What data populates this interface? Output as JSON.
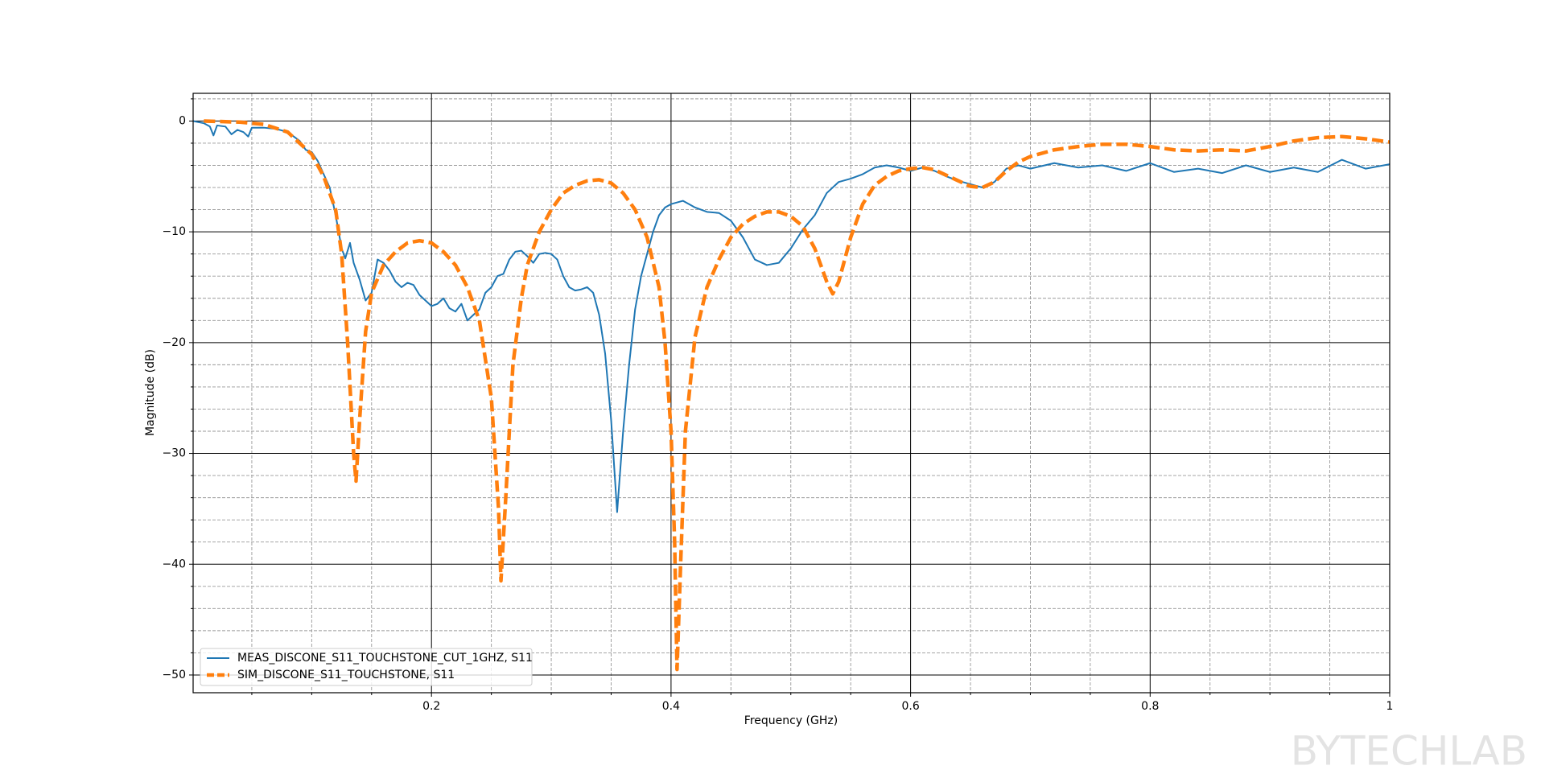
{
  "chart_data": {
    "type": "line",
    "x_label": "Frequency (GHz)",
    "y_label": "Magnitude (dB)",
    "xlim": [
      0.001,
      1
    ],
    "ylim": [
      -51.6,
      2.5
    ],
    "xticks": [
      0.2,
      0.4,
      0.6,
      0.8,
      1
    ],
    "yticks": [
      {
        "value": 0,
        "label": "0"
      },
      {
        "value": -10,
        "label": "−10"
      },
      {
        "value": -20,
        "label": "−20"
      },
      {
        "value": -30,
        "label": "−30"
      },
      {
        "value": -40,
        "label": "−40"
      },
      {
        "value": -50,
        "label": "−50"
      }
    ],
    "xminorticks": [
      0.05,
      0.1,
      0.15,
      0.25,
      0.3,
      0.35,
      0.45,
      0.5,
      0.55,
      0.65,
      0.7,
      0.75,
      0.85,
      0.9,
      0.95
    ],
    "yminorticks": [
      2,
      -2,
      -4,
      -6,
      -8,
      -12,
      -14,
      -16,
      -18,
      -22,
      -24,
      -26,
      -28,
      -32,
      -34,
      -36,
      -38,
      -42,
      -44,
      -46,
      -48
    ],
    "grid": true,
    "legend": "lower left",
    "watermark": "BYTECHLAB",
    "series": [
      {
        "name": "MEAS_DISCONE_S11_TOUCHSTONE_CUT_1GHZ, S11",
        "color": "#1f77b4",
        "dash": "solid",
        "x": [
          0.001,
          0.01,
          0.015,
          0.018,
          0.021,
          0.028,
          0.033,
          0.038,
          0.043,
          0.047,
          0.05,
          0.06,
          0.07,
          0.08,
          0.09,
          0.095,
          0.1,
          0.105,
          0.11,
          0.115,
          0.12,
          0.125,
          0.128,
          0.132,
          0.135,
          0.14,
          0.145,
          0.15,
          0.155,
          0.16,
          0.165,
          0.17,
          0.175,
          0.18,
          0.185,
          0.19,
          0.195,
          0.2,
          0.205,
          0.21,
          0.215,
          0.22,
          0.225,
          0.23,
          0.235,
          0.24,
          0.245,
          0.25,
          0.255,
          0.26,
          0.265,
          0.27,
          0.275,
          0.28,
          0.285,
          0.29,
          0.295,
          0.3,
          0.305,
          0.31,
          0.315,
          0.32,
          0.325,
          0.33,
          0.335,
          0.34,
          0.345,
          0.35,
          0.355,
          0.36,
          0.365,
          0.37,
          0.375,
          0.38,
          0.385,
          0.39,
          0.395,
          0.4,
          0.41,
          0.42,
          0.43,
          0.44,
          0.45,
          0.46,
          0.47,
          0.48,
          0.49,
          0.5,
          0.51,
          0.52,
          0.53,
          0.54,
          0.55,
          0.56,
          0.57,
          0.58,
          0.59,
          0.6,
          0.61,
          0.62,
          0.63,
          0.64,
          0.65,
          0.66,
          0.67,
          0.68,
          0.69,
          0.7,
          0.72,
          0.74,
          0.76,
          0.78,
          0.8,
          0.82,
          0.84,
          0.86,
          0.88,
          0.9,
          0.92,
          0.94,
          0.96,
          0.98,
          1.0
        ],
        "values": [
          0,
          -0.2,
          -0.5,
          -1.3,
          -0.4,
          -0.5,
          -1.2,
          -0.8,
          -1.0,
          -1.4,
          -0.6,
          -0.6,
          -0.7,
          -1.0,
          -1.8,
          -2.6,
          -2.8,
          -3.6,
          -4.8,
          -6.0,
          -8.5,
          -11.5,
          -12.4,
          -11.0,
          -12.8,
          -14.3,
          -16.2,
          -15.5,
          -12.5,
          -12.8,
          -13.5,
          -14.5,
          -15.0,
          -14.6,
          -14.8,
          -15.7,
          -16.2,
          -16.7,
          -16.5,
          -16.0,
          -16.9,
          -17.2,
          -16.5,
          -18.0,
          -17.5,
          -17.0,
          -15.5,
          -15.0,
          -14.0,
          -13.8,
          -12.5,
          -11.8,
          -11.7,
          -12.2,
          -12.8,
          -12.0,
          -11.9,
          -12.0,
          -12.5,
          -14.0,
          -15.0,
          -15.3,
          -15.2,
          -15.0,
          -15.5,
          -17.5,
          -21.0,
          -27.0,
          -35.3,
          -28.0,
          -22.0,
          -17.0,
          -14.0,
          -12.0,
          -10.0,
          -8.5,
          -7.8,
          -7.5,
          -7.2,
          -7.8,
          -8.2,
          -8.3,
          -9.0,
          -10.5,
          -12.5,
          -13.0,
          -12.8,
          -11.5,
          -9.8,
          -8.5,
          -6.5,
          -5.5,
          -5.2,
          -4.8,
          -4.2,
          -4.0,
          -4.2,
          -4.5,
          -4.2,
          -4.5,
          -5.0,
          -5.4,
          -5.7,
          -6.0,
          -5.5,
          -4.3,
          -4.0,
          -4.3,
          -3.8,
          -4.2,
          -4.0,
          -4.5,
          -3.8,
          -4.6,
          -4.3,
          -4.7,
          -4.0,
          -4.6,
          -4.2,
          -4.6,
          -3.5,
          -4.3,
          -3.9
        ]
      },
      {
        "name": "SIM_DISCONE_S11_TOUCHSTONE, S11",
        "color": "#ff7f0e",
        "dash": "dashed",
        "x": [
          0.01,
          0.04,
          0.06,
          0.08,
          0.1,
          0.11,
          0.12,
          0.125,
          0.13,
          0.135,
          0.137,
          0.14,
          0.145,
          0.15,
          0.16,
          0.17,
          0.18,
          0.19,
          0.2,
          0.21,
          0.22,
          0.23,
          0.24,
          0.25,
          0.256,
          0.258,
          0.262,
          0.268,
          0.275,
          0.28,
          0.29,
          0.3,
          0.31,
          0.32,
          0.33,
          0.34,
          0.35,
          0.36,
          0.37,
          0.38,
          0.39,
          0.395,
          0.4,
          0.403,
          0.405,
          0.408,
          0.412,
          0.42,
          0.43,
          0.44,
          0.45,
          0.46,
          0.47,
          0.48,
          0.49,
          0.5,
          0.51,
          0.52,
          0.53,
          0.535,
          0.54,
          0.55,
          0.56,
          0.57,
          0.58,
          0.59,
          0.6,
          0.61,
          0.62,
          0.63,
          0.64,
          0.65,
          0.66,
          0.67,
          0.68,
          0.69,
          0.7,
          0.72,
          0.74,
          0.76,
          0.78,
          0.8,
          0.82,
          0.84,
          0.86,
          0.88,
          0.9,
          0.92,
          0.94,
          0.96,
          0.98,
          1.0
        ],
        "values": [
          0,
          -0.1,
          -0.3,
          -1.0,
          -3.0,
          -5.0,
          -8.0,
          -12,
          -20,
          -30,
          -32.5,
          -27,
          -19,
          -15.5,
          -13,
          -11.8,
          -11.0,
          -10.8,
          -11.0,
          -11.8,
          -13,
          -15,
          -18,
          -25,
          -35,
          -41.5,
          -34,
          -22,
          -16,
          -13,
          -10,
          -8,
          -6.5,
          -5.8,
          -5.4,
          -5.3,
          -5.6,
          -6.5,
          -8,
          -10.5,
          -15,
          -20,
          -28,
          -38,
          -49.5,
          -40,
          -28,
          -19.5,
          -15,
          -12.5,
          -10.5,
          -9.3,
          -8.6,
          -8.2,
          -8.2,
          -8.6,
          -9.5,
          -11.5,
          -14.5,
          -15.6,
          -14.5,
          -10.5,
          -7.5,
          -5.8,
          -5.0,
          -4.5,
          -4.3,
          -4.2,
          -4.4,
          -4.9,
          -5.4,
          -5.9,
          -6.0,
          -5.5,
          -4.5,
          -3.7,
          -3.2,
          -2.6,
          -2.3,
          -2.1,
          -2.1,
          -2.3,
          -2.6,
          -2.7,
          -2.6,
          -2.7,
          -2.3,
          -1.8,
          -1.5,
          -1.4,
          -1.6,
          -1.9
        ]
      }
    ]
  }
}
